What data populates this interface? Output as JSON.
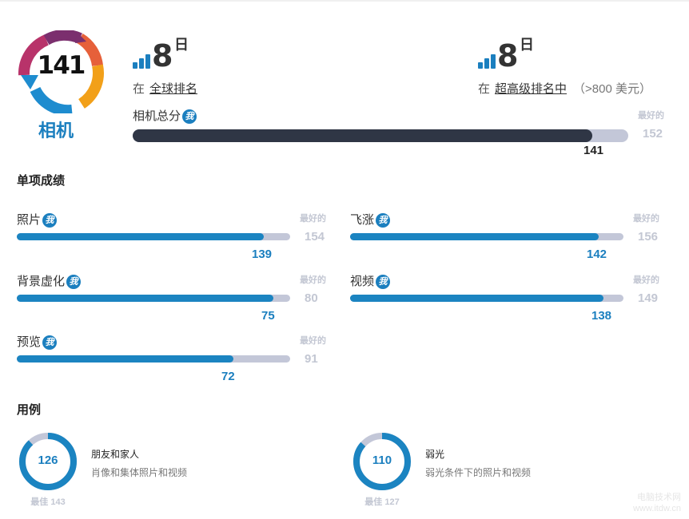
{
  "header": {
    "overall_score": "141",
    "category": "相机",
    "colors": {
      "accent": "#1b7fbf",
      "dark_bar": "#2f3645",
      "track": "#c3c7d8",
      "muted": "#c3c7d3"
    }
  },
  "rank_global": {
    "number": "8",
    "day": "日",
    "prefix": "在",
    "link": "全球排名",
    "extra": ""
  },
  "rank_ultra": {
    "number": "8",
    "day": "日",
    "prefix": "在",
    "link": "超高级排名中",
    "extra": "（>800 美元）"
  },
  "total": {
    "label": "相机总分",
    "badge": "我",
    "score": 141,
    "score_text": "141",
    "best": 152,
    "best_text": "152",
    "best_label": "最好的"
  },
  "sub_scores": {
    "title": "单项成绩",
    "items": [
      {
        "label": "照片",
        "badge": "我",
        "score": 139,
        "score_text": "139",
        "best": 154,
        "best_text": "154",
        "best_label": "最好的"
      },
      {
        "label": "飞涨",
        "badge": "我",
        "score": 142,
        "score_text": "142",
        "best": 156,
        "best_text": "156",
        "best_label": "最好的"
      },
      {
        "label": "背景虚化",
        "badge": "我",
        "score": 75,
        "score_text": "75",
        "best": 80,
        "best_text": "80",
        "best_label": "最好的"
      },
      {
        "label": "视频",
        "badge": "我",
        "score": 138,
        "score_text": "138",
        "best": 149,
        "best_text": "149",
        "best_label": "最好的"
      },
      {
        "label": "预览",
        "badge": "我",
        "score": 72,
        "score_text": "72",
        "best": 91,
        "best_text": "91",
        "best_label": "最好的"
      }
    ]
  },
  "use_cases": {
    "title": "用例",
    "items": [
      {
        "score": 126,
        "score_text": "126",
        "best": 143,
        "best_text": "最佳 143",
        "title": "朋友和家人",
        "desc": "肖像和集体照片和视频"
      },
      {
        "score": 110,
        "score_text": "110",
        "best": 127,
        "best_text": "最佳 127",
        "title": "弱光",
        "desc": "弱光条件下的照片和视频"
      }
    ]
  },
  "watermark": {
    "line1": "电脑技术网",
    "line2": "www.itdw.cn"
  }
}
